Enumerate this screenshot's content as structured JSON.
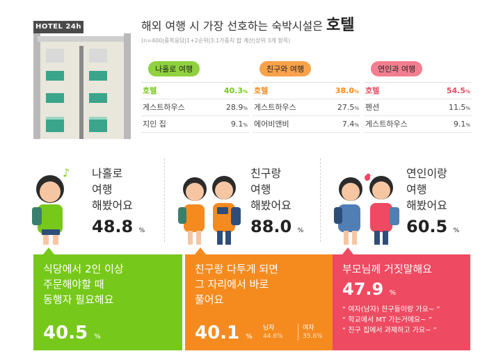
{
  "hotel_sign": "HOTEL 24h",
  "header": {
    "title_prefix": "해외 여행 시 가장 선호하는 숙박시설은",
    "title_emphasis": "호텔",
    "subtitle": "(n=400|중복응답|1+2순위|3:1가중치 합 계산|상위 3개 항목)"
  },
  "colors": {
    "green": "#76c81a",
    "orange": "#f58b1f",
    "pink": "#ee4a61",
    "pill_green": "#8fd13e",
    "pill_orange": "#f9a14b",
    "pill_pink": "#f37e90"
  },
  "rankings": [
    {
      "label": "나홀로 여행",
      "rows": [
        {
          "name": "호텔",
          "pct": "40.3"
        },
        {
          "name": "게스트하우스",
          "pct": "28.9"
        },
        {
          "name": "지인 집",
          "pct": "9.1"
        }
      ]
    },
    {
      "label": "친구와 여행",
      "rows": [
        {
          "name": "호텔",
          "pct": "38.0"
        },
        {
          "name": "게스트하우스",
          "pct": "27.5"
        },
        {
          "name": "에어비앤비",
          "pct": "7.4"
        }
      ]
    },
    {
      "label": "연인과 여행",
      "rows": [
        {
          "name": "호텔",
          "pct": "54.5"
        },
        {
          "name": "펜션",
          "pct": "11.5"
        },
        {
          "name": "게스트하우스",
          "pct": "9.1"
        }
      ]
    }
  ],
  "pct_unit": "%",
  "panels": [
    {
      "line1": "나홀로",
      "line2": "여행",
      "line3": "해봤어요",
      "pct": "48.8"
    },
    {
      "line1": "친구랑",
      "line2": "여행",
      "line3": "해봤어요",
      "pct": "88.0"
    },
    {
      "line1": "연인이랑",
      "line2": "여행",
      "line3": "해봤어요",
      "pct": "60.5"
    }
  ],
  "cards": {
    "solo": {
      "line1": "식당에서 2인 이상",
      "line2": "주문해야할 때",
      "line3": "동행자 필요해요",
      "pct": "40.5"
    },
    "friends": {
      "line1": "친구랑 다투게 되면",
      "line2": "그 자리에서 바로",
      "line3": "풀어요",
      "pct": "40.1",
      "male_label": "남자",
      "male_pct": "44.6%",
      "female_label": "여자",
      "female_pct": "35.6%"
    },
    "couple": {
      "line1": "부모님께 거짓말해요",
      "pct": "47.9",
      "quotes": [
        "“ 여자(남자) 친구들이랑 가요~ ”",
        "“ 학교에서 MT 가는거에요~ ”",
        "“ 친구 집에서 과제하고 가요~ ”"
      ]
    }
  }
}
